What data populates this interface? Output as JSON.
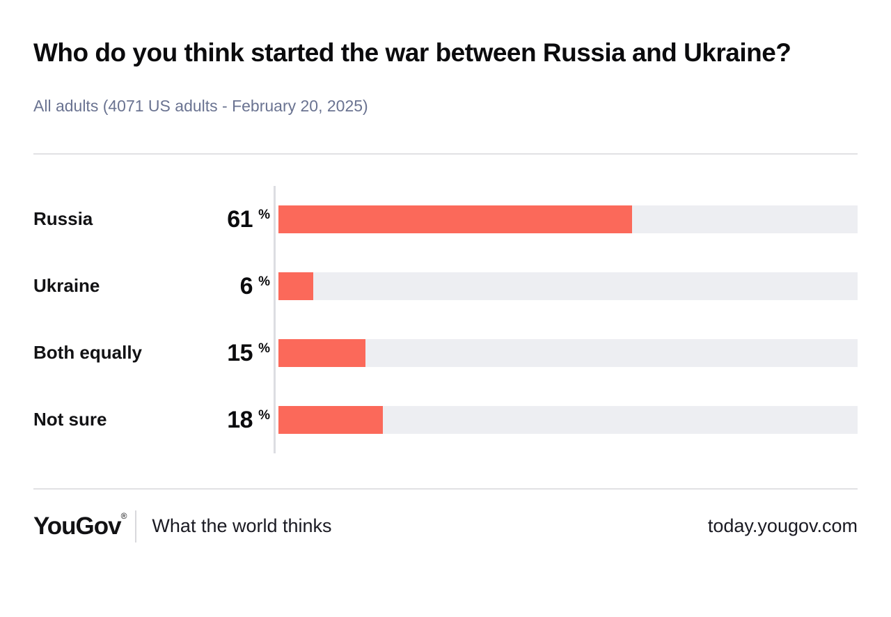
{
  "header": {
    "title": "Who do you think started the war between Russia and Ukraine?",
    "subtitle": "All adults (4071 US adults - February 20, 2025)"
  },
  "chart_data": {
    "type": "bar",
    "orientation": "horizontal",
    "title": "Who do you think started the war between Russia and Ukraine?",
    "categories": [
      "Russia",
      "Ukraine",
      "Both equally",
      "Not sure"
    ],
    "values": [
      61,
      6,
      15,
      18
    ],
    "unit": "%",
    "xlim": [
      0,
      100
    ],
    "grid": false,
    "legend": "none",
    "bar_color": "#fb695a",
    "track_color": "#edeef2",
    "axis_line_color": "#dcdde2"
  },
  "footer": {
    "logo_text": "YouGov",
    "registered_mark": "®",
    "tagline": "What the world thinks",
    "site_url": "today.yougov.com"
  }
}
